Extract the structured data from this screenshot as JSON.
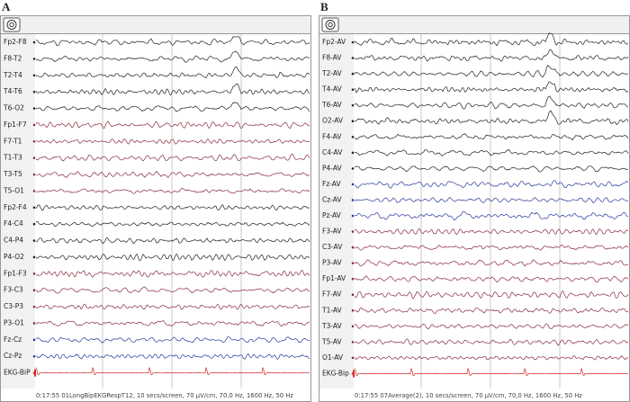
{
  "panels": [
    {
      "label": "A",
      "channels": [
        {
          "name": "Fp2-F8",
          "color": "#222222"
        },
        {
          "name": "F8-T2",
          "color": "#222222"
        },
        {
          "name": "T2-T4",
          "color": "#222222"
        },
        {
          "name": "T4-T6",
          "color": "#222222"
        },
        {
          "name": "T6-O2",
          "color": "#222222"
        },
        {
          "name": "Fp1-F7",
          "color": "#8a2d3c"
        },
        {
          "name": "F7-T1",
          "color": "#8a2d3c"
        },
        {
          "name": "T1-T3",
          "color": "#8a2d3c"
        },
        {
          "name": "T3-T5",
          "color": "#8a2d3c"
        },
        {
          "name": "T5-O1",
          "color": "#8a2d3c"
        },
        {
          "name": "Fp2-F4",
          "color": "#222222"
        },
        {
          "name": "F4-C4",
          "color": "#222222"
        },
        {
          "name": "C4-P4",
          "color": "#222222"
        },
        {
          "name": "P4-O2",
          "color": "#222222"
        },
        {
          "name": "Fp1-F3",
          "color": "#8a2d3c"
        },
        {
          "name": "F3-C3",
          "color": "#8a2d3c"
        },
        {
          "name": "C3-P3",
          "color": "#8a2d3c"
        },
        {
          "name": "P3-O1",
          "color": "#8a2d3c"
        },
        {
          "name": "Fz-Cz",
          "color": "#2a3a9a"
        },
        {
          "name": "Cz-Pz",
          "color": "#2a3a9a"
        },
        {
          "name": "EKG-BiP",
          "color": "#d42a2a"
        }
      ],
      "footer": "0:17:55 01LongBipEKGRespT12, 10 secs/screen, 70 µV/cm, 70,0 Hz, 1600 Hz, 50 Hz"
    },
    {
      "label": "B",
      "channels": [
        {
          "name": "Fp2-AV",
          "color": "#222222"
        },
        {
          "name": "F8-AV",
          "color": "#222222"
        },
        {
          "name": "T2-AV",
          "color": "#222222"
        },
        {
          "name": "T4-AV",
          "color": "#222222"
        },
        {
          "name": "T6-AV",
          "color": "#222222"
        },
        {
          "name": "O2-AV",
          "color": "#222222"
        },
        {
          "name": "F4-AV",
          "color": "#222222"
        },
        {
          "name": "C4-AV",
          "color": "#222222"
        },
        {
          "name": "P4-AV",
          "color": "#222222"
        },
        {
          "name": "Fz-AV",
          "color": "#2a3a9a"
        },
        {
          "name": "Cz-AV",
          "color": "#2a3a9a"
        },
        {
          "name": "Pz-AV",
          "color": "#2a3a9a"
        },
        {
          "name": "F3-AV",
          "color": "#8a2d3c"
        },
        {
          "name": "C3-AV",
          "color": "#8a2d3c"
        },
        {
          "name": "P3-AV",
          "color": "#8a2d3c"
        },
        {
          "name": "Fp1-AV",
          "color": "#8a2d3c"
        },
        {
          "name": "F7-AV",
          "color": "#8a2d3c"
        },
        {
          "name": "T1-AV",
          "color": "#8a2d3c"
        },
        {
          "name": "T3-AV",
          "color": "#8a2d3c"
        },
        {
          "name": "T5-AV",
          "color": "#8a2d3c"
        },
        {
          "name": "O1-AV",
          "color": "#8a2d3c"
        },
        {
          "name": "EKG-Bip",
          "color": "#d42a2a"
        }
      ],
      "footer": "0:17:55 07Average(2), 10 secs/screen, 70 µV/cm, 70,0 Hz, 1600 Hz, 50 Hz"
    }
  ]
}
